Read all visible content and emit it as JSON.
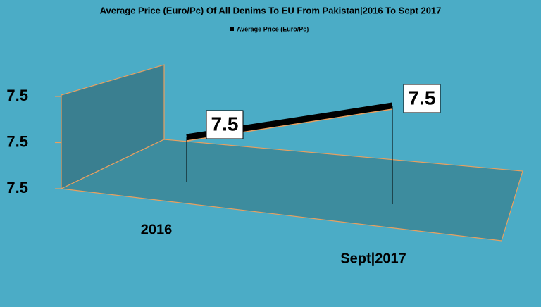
{
  "chart_data": {
    "type": "line3d",
    "title": "Average Price (Euro/Pc) Of All Denims To EU From Pakistan|2016 To Sept 2017",
    "categories": [
      "2016",
      "Sept|2017"
    ],
    "series": [
      {
        "name": "Average Price (Euro/Pc)",
        "color": "#000000",
        "values": [
          7.5,
          7.5
        ]
      }
    ],
    "ylim": [
      7.46,
      7.54
    ],
    "yticks": [
      {
        "value": 7.46,
        "label": "7.5"
      },
      7.5,
      {
        "value": 7.54,
        "label": "7.5"
      }
    ],
    "legend": "top"
  }
}
